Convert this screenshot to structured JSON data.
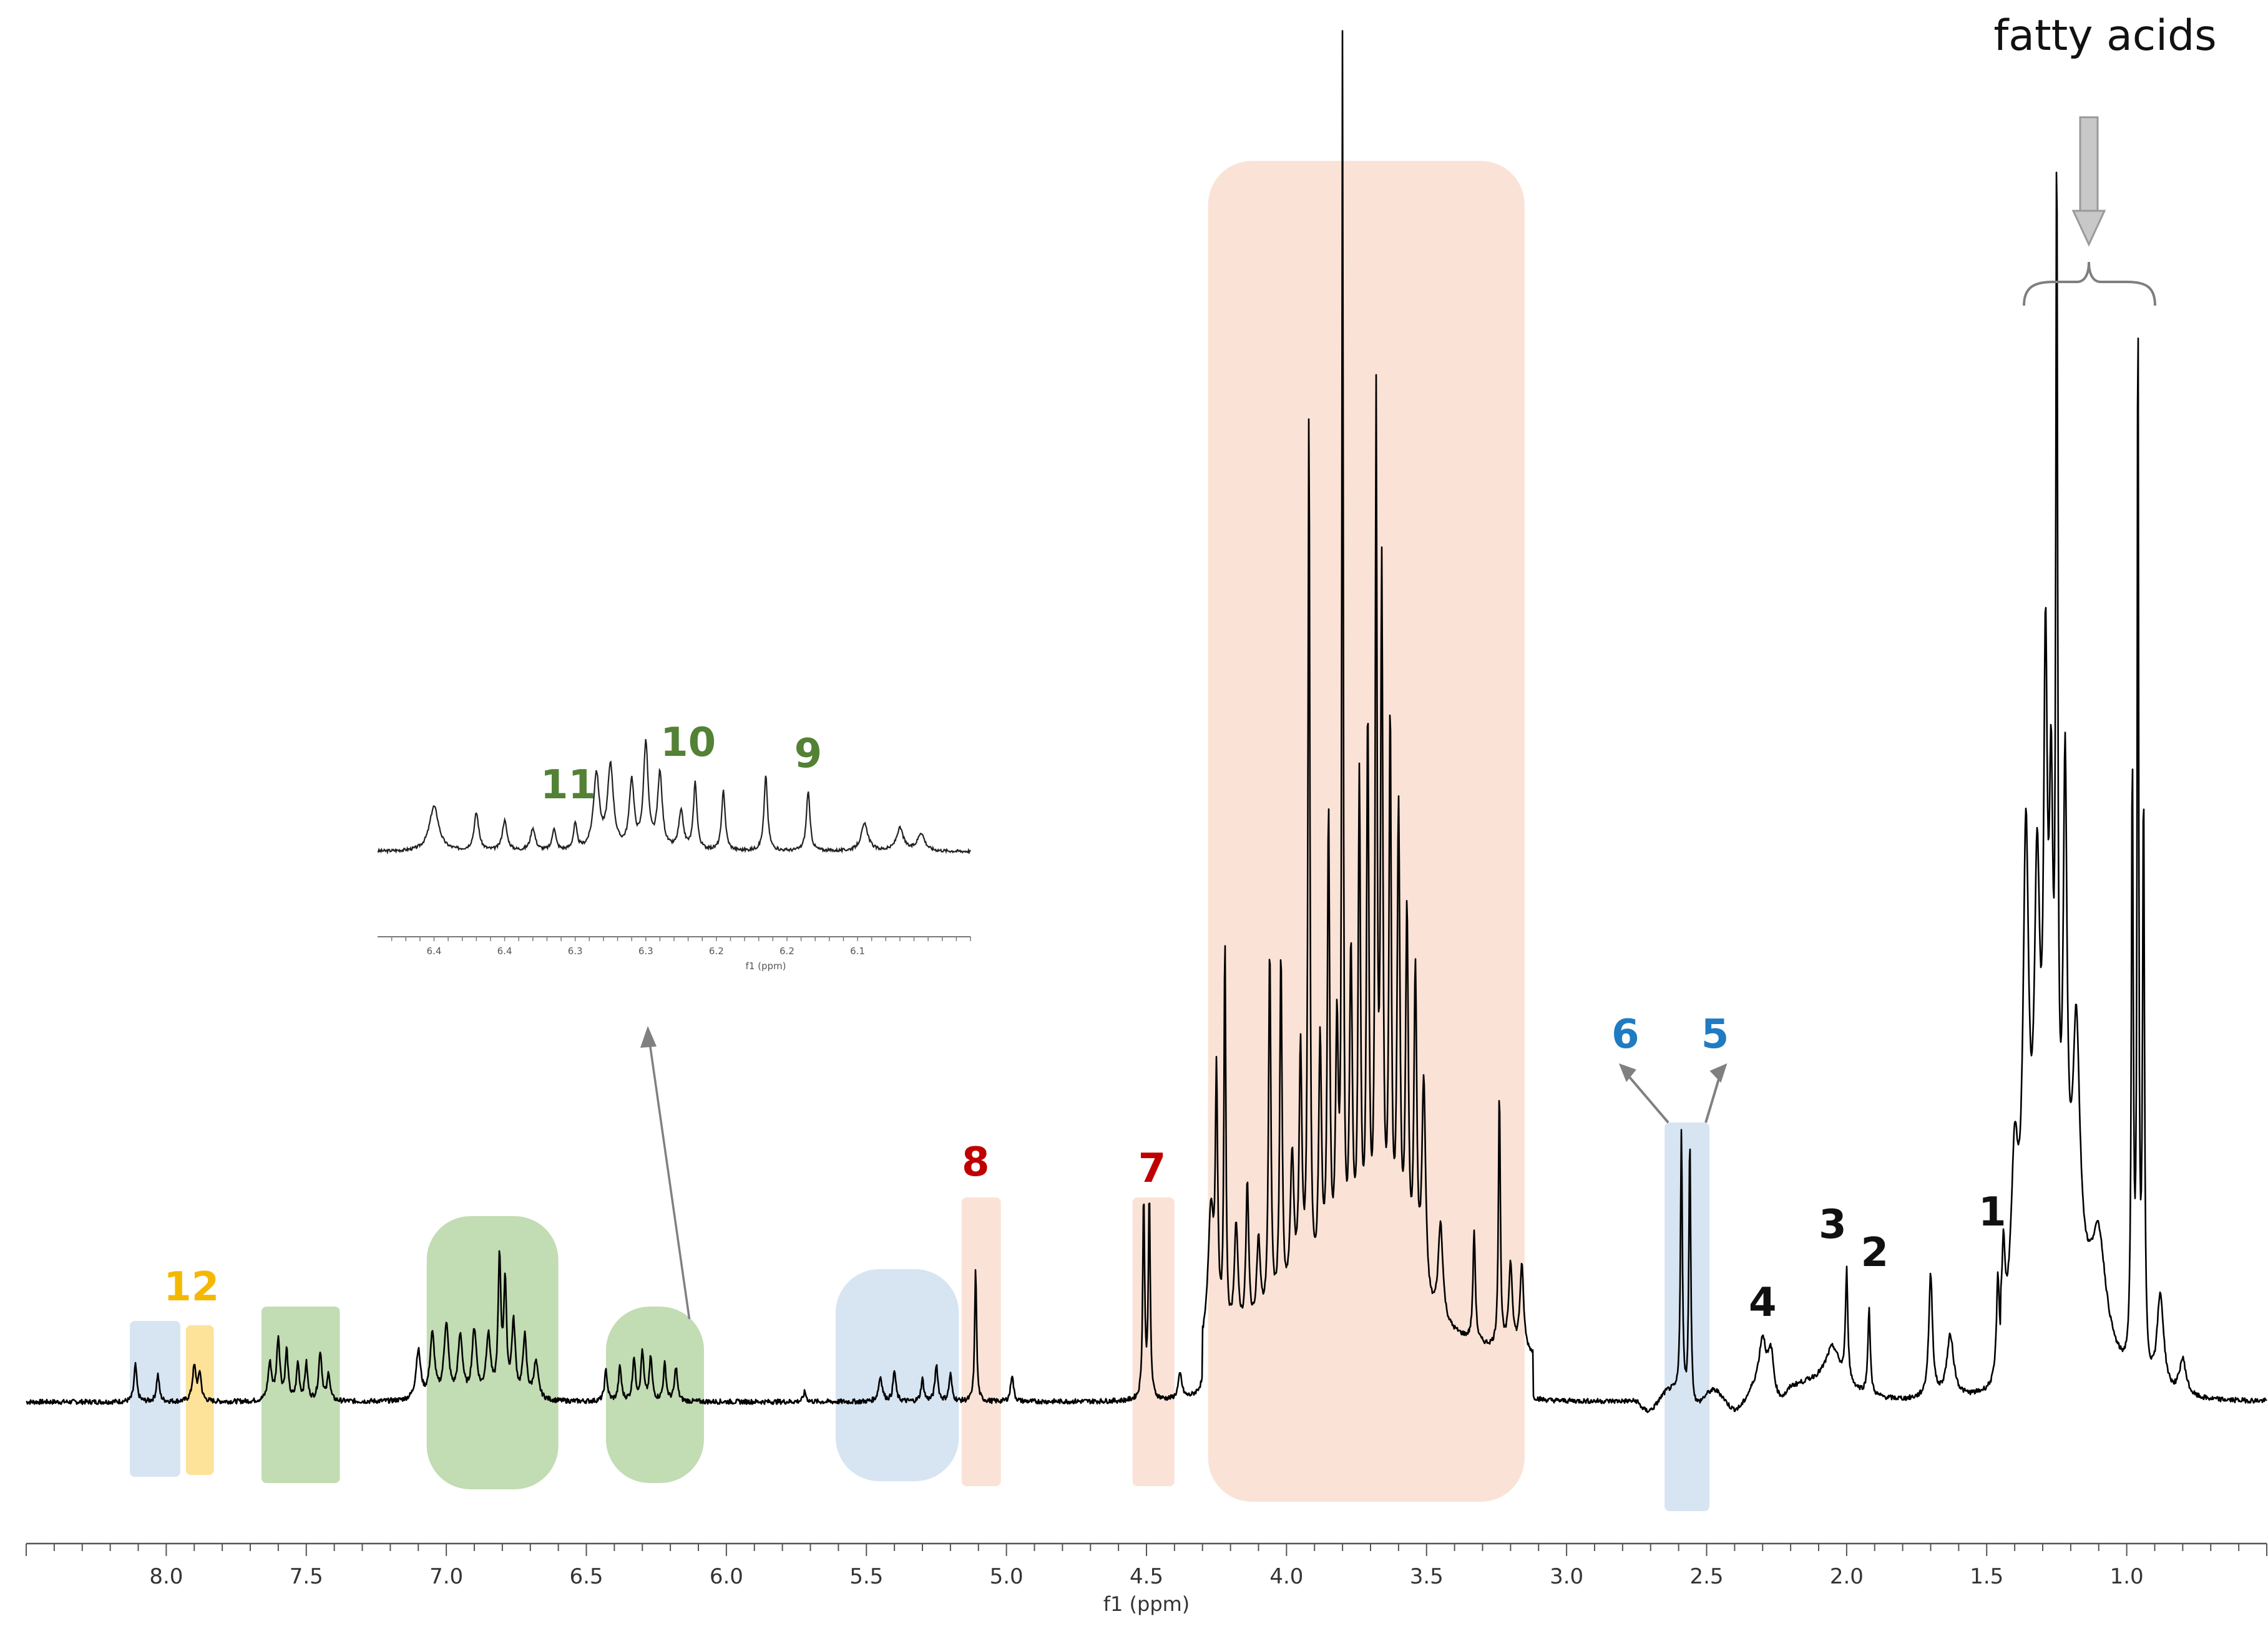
{
  "chart_data": {
    "type": "line",
    "title": "",
    "xlabel": "f1 (ppm)",
    "ylabel": "",
    "xlim": [
      8.5,
      0.5
    ],
    "x_reversed": true,
    "grid": false,
    "x_ticks": [
      8.0,
      7.5,
      7.0,
      6.5,
      6.0,
      5.5,
      5.0,
      4.5,
      4.0,
      3.5,
      3.0,
      2.5,
      2.0,
      1.5,
      1.0
    ],
    "x_tick_labels": [
      "8.0",
      "7.5",
      "7.0",
      "6.5",
      "6.0",
      "5.5",
      "5.0",
      "4.5",
      "4.0",
      "3.5",
      "3.0",
      "2.5",
      "2.0",
      "1.5",
      "1.0"
    ],
    "baseline": 0.0,
    "ylim": [
      0,
      1.0
    ],
    "peaks": [
      {
        "x": 8.11,
        "h": 0.03,
        "w": 0.006
      },
      {
        "x": 8.03,
        "h": 0.022,
        "w": 0.006
      },
      {
        "x": 7.9,
        "h": 0.028,
        "w": 0.008
      },
      {
        "x": 7.88,
        "h": 0.022,
        "w": 0.006
      },
      {
        "x": 7.63,
        "h": 0.03,
        "w": 0.008
      },
      {
        "x": 7.6,
        "h": 0.05,
        "w": 0.007
      },
      {
        "x": 7.57,
        "h": 0.04,
        "w": 0.006
      },
      {
        "x": 7.53,
        "h": 0.03,
        "w": 0.006
      },
      {
        "x": 7.5,
        "h": 0.03,
        "w": 0.006
      },
      {
        "x": 7.45,
        "h": 0.04,
        "w": 0.007
      },
      {
        "x": 7.42,
        "h": 0.022,
        "w": 0.006
      },
      {
        "x": 7.1,
        "h": 0.04,
        "w": 0.01
      },
      {
        "x": 7.05,
        "h": 0.052,
        "w": 0.01
      },
      {
        "x": 7.0,
        "h": 0.06,
        "w": 0.01
      },
      {
        "x": 6.95,
        "h": 0.05,
        "w": 0.01
      },
      {
        "x": 6.9,
        "h": 0.055,
        "w": 0.01
      },
      {
        "x": 6.85,
        "h": 0.05,
        "w": 0.01
      },
      {
        "x": 6.81,
        "h": 0.11,
        "w": 0.006
      },
      {
        "x": 6.79,
        "h": 0.09,
        "w": 0.006
      },
      {
        "x": 6.76,
        "h": 0.06,
        "w": 0.008
      },
      {
        "x": 6.72,
        "h": 0.05,
        "w": 0.008
      },
      {
        "x": 6.68,
        "h": 0.03,
        "w": 0.01
      },
      {
        "x": 6.43,
        "h": 0.025,
        "w": 0.006
      },
      {
        "x": 6.38,
        "h": 0.028,
        "w": 0.006
      },
      {
        "x": 6.33,
        "h": 0.035,
        "w": 0.006
      },
      {
        "x": 6.3,
        "h": 0.04,
        "w": 0.006
      },
      {
        "x": 6.27,
        "h": 0.035,
        "w": 0.006
      },
      {
        "x": 6.22,
        "h": 0.03,
        "w": 0.006
      },
      {
        "x": 6.18,
        "h": 0.028,
        "w": 0.006
      },
      {
        "x": 5.72,
        "h": 0.008,
        "w": 0.006
      },
      {
        "x": 5.45,
        "h": 0.02,
        "w": 0.008
      },
      {
        "x": 5.4,
        "h": 0.025,
        "w": 0.006
      },
      {
        "x": 5.3,
        "h": 0.018,
        "w": 0.006
      },
      {
        "x": 5.25,
        "h": 0.03,
        "w": 0.006
      },
      {
        "x": 5.2,
        "h": 0.022,
        "w": 0.006
      },
      {
        "x": 5.11,
        "h": 0.11,
        "w": 0.004
      },
      {
        "x": 4.98,
        "h": 0.022,
        "w": 0.006
      },
      {
        "x": 4.51,
        "h": 0.165,
        "w": 0.004
      },
      {
        "x": 4.49,
        "h": 0.165,
        "w": 0.004
      },
      {
        "x": 4.38,
        "h": 0.02,
        "w": 0.008
      },
      {
        "x": 4.27,
        "h": 0.11,
        "w": 0.012
      },
      {
        "x": 4.25,
        "h": 0.2,
        "w": 0.005
      },
      {
        "x": 4.22,
        "h": 0.32,
        "w": 0.004
      },
      {
        "x": 4.18,
        "h": 0.09,
        "w": 0.008
      },
      {
        "x": 4.14,
        "h": 0.12,
        "w": 0.006
      },
      {
        "x": 4.1,
        "h": 0.07,
        "w": 0.008
      },
      {
        "x": 4.06,
        "h": 0.3,
        "w": 0.005
      },
      {
        "x": 4.02,
        "h": 0.29,
        "w": 0.005
      },
      {
        "x": 3.98,
        "h": 0.12,
        "w": 0.008
      },
      {
        "x": 3.95,
        "h": 0.2,
        "w": 0.006
      },
      {
        "x": 3.92,
        "h": 0.72,
        "w": 0.004
      },
      {
        "x": 3.88,
        "h": 0.2,
        "w": 0.006
      },
      {
        "x": 3.85,
        "h": 0.38,
        "w": 0.005
      },
      {
        "x": 3.82,
        "h": 0.2,
        "w": 0.006
      },
      {
        "x": 3.8,
        "h": 1.0,
        "w": 0.003
      },
      {
        "x": 3.77,
        "h": 0.26,
        "w": 0.006
      },
      {
        "x": 3.74,
        "h": 0.4,
        "w": 0.005
      },
      {
        "x": 3.71,
        "h": 0.45,
        "w": 0.005
      },
      {
        "x": 3.68,
        "h": 0.69,
        "w": 0.004
      },
      {
        "x": 3.66,
        "h": 0.56,
        "w": 0.005
      },
      {
        "x": 3.63,
        "h": 0.45,
        "w": 0.005
      },
      {
        "x": 3.6,
        "h": 0.38,
        "w": 0.006
      },
      {
        "x": 3.57,
        "h": 0.3,
        "w": 0.006
      },
      {
        "x": 3.54,
        "h": 0.26,
        "w": 0.006
      },
      {
        "x": 3.51,
        "h": 0.18,
        "w": 0.008
      },
      {
        "x": 3.45,
        "h": 0.08,
        "w": 0.01
      },
      {
        "x": 3.33,
        "h": 0.09,
        "w": 0.005
      },
      {
        "x": 3.24,
        "h": 0.21,
        "w": 0.004
      },
      {
        "x": 3.2,
        "h": 0.07,
        "w": 0.008
      },
      {
        "x": 3.16,
        "h": 0.07,
        "w": 0.008
      },
      {
        "x": 2.59,
        "h": 0.22,
        "w": 0.004
      },
      {
        "x": 2.56,
        "h": 0.22,
        "w": 0.004
      },
      {
        "x": 2.3,
        "h": 0.04,
        "w": 0.015
      },
      {
        "x": 2.27,
        "h": 0.035,
        "w": 0.012
      },
      {
        "x": 2.05,
        "h": 0.03,
        "w": 0.03
      },
      {
        "x": 2.0,
        "h": 0.09,
        "w": 0.005
      },
      {
        "x": 1.92,
        "h": 0.07,
        "w": 0.005
      },
      {
        "x": 1.7,
        "h": 0.1,
        "w": 0.008
      },
      {
        "x": 1.63,
        "h": 0.05,
        "w": 0.015
      },
      {
        "x": 1.46,
        "h": 0.08,
        "w": 0.006
      },
      {
        "x": 1.44,
        "h": 0.07,
        "w": 0.006
      },
      {
        "x": 1.4,
        "h": 0.13,
        "w": 0.015
      },
      {
        "x": 1.36,
        "h": 0.36,
        "w": 0.012
      },
      {
        "x": 1.32,
        "h": 0.3,
        "w": 0.012
      },
      {
        "x": 1.29,
        "h": 0.44,
        "w": 0.008
      },
      {
        "x": 1.27,
        "h": 0.32,
        "w": 0.008
      },
      {
        "x": 1.25,
        "h": 0.83,
        "w": 0.004
      },
      {
        "x": 1.22,
        "h": 0.38,
        "w": 0.008
      },
      {
        "x": 1.18,
        "h": 0.2,
        "w": 0.015
      },
      {
        "x": 1.1,
        "h": 0.08,
        "w": 0.03
      },
      {
        "x": 0.98,
        "h": 0.49,
        "w": 0.004
      },
      {
        "x": 0.96,
        "h": 0.89,
        "w": 0.003
      },
      {
        "x": 0.94,
        "h": 0.47,
        "w": 0.004
      },
      {
        "x": 0.88,
        "h": 0.08,
        "w": 0.015
      },
      {
        "x": 0.8,
        "h": 0.03,
        "w": 0.015
      }
    ],
    "regions": [
      {
        "from": 8.13,
        "to": 7.95,
        "color": "#d7e4f2"
      },
      {
        "from": 7.93,
        "to": 7.83,
        "color": "#fde29a"
      },
      {
        "from": 7.66,
        "to": 7.38,
        "color": "#c2dcb3"
      },
      {
        "from": 7.07,
        "to": 6.6,
        "color": "#c2dcb3"
      },
      {
        "from": 6.43,
        "to": 6.08,
        "color": "#c2dcb3"
      },
      {
        "from": 5.61,
        "to": 5.17,
        "color": "#d7e4f2"
      },
      {
        "from": 5.16,
        "to": 5.02,
        "color": "#fae3d6"
      },
      {
        "from": 4.55,
        "to": 4.4,
        "color": "#fae3d6"
      },
      {
        "from": 4.28,
        "to": 3.15,
        "color": "#fae3d6"
      },
      {
        "from": 2.65,
        "to": 2.49,
        "color": "#d7e4f2"
      }
    ],
    "annotations": [
      {
        "text": "1",
        "x": 1.48,
        "color": "#111111"
      },
      {
        "text": "2",
        "x": 1.9,
        "color": "#111111"
      },
      {
        "text": "3",
        "x": 2.05,
        "color": "#111111"
      },
      {
        "text": "4",
        "x": 2.3,
        "color": "#111111"
      },
      {
        "text": "5",
        "x": 2.47,
        "color": "#1f7bc2"
      },
      {
        "text": "6",
        "x": 2.79,
        "color": "#1f7bc2"
      },
      {
        "text": "7",
        "x": 4.48,
        "color": "#c00000"
      },
      {
        "text": "8",
        "x": 5.11,
        "color": "#c00000"
      },
      {
        "text": "12",
        "x": 7.91,
        "color": "#f5b800"
      }
    ],
    "fatty_acids_label": "fatty acids",
    "inset": {
      "xlabel": "f1 (ppm)",
      "xlim": [
        6.47,
        6.05
      ],
      "tick_labels": [
        "6.4",
        "6.4",
        "6.3",
        "6.3",
        "6.2",
        "6.2",
        "6.1"
      ],
      "tick_positions": [
        6.43,
        6.38,
        6.33,
        6.28,
        6.23,
        6.18,
        6.13
      ],
      "peaks": [
        {
          "x": 6.43,
          "h": 0.3,
          "w": 0.004
        },
        {
          "x": 6.4,
          "h": 0.25,
          "w": 0.002
        },
        {
          "x": 6.38,
          "h": 0.2,
          "w": 0.002
        },
        {
          "x": 6.36,
          "h": 0.15,
          "w": 0.002
        },
        {
          "x": 6.345,
          "h": 0.15,
          "w": 0.0015
        },
        {
          "x": 6.33,
          "h": 0.17,
          "w": 0.0015
        },
        {
          "x": 6.315,
          "h": 0.5,
          "w": 0.0025
        },
        {
          "x": 6.305,
          "h": 0.55,
          "w": 0.0025
        },
        {
          "x": 6.29,
          "h": 0.45,
          "w": 0.002
        },
        {
          "x": 6.28,
          "h": 0.7,
          "w": 0.002
        },
        {
          "x": 6.27,
          "h": 0.5,
          "w": 0.002
        },
        {
          "x": 6.255,
          "h": 0.25,
          "w": 0.002
        },
        {
          "x": 6.245,
          "h": 0.45,
          "w": 0.0015
        },
        {
          "x": 6.225,
          "h": 0.4,
          "w": 0.0015
        },
        {
          "x": 6.195,
          "h": 0.5,
          "w": 0.0015
        },
        {
          "x": 6.165,
          "h": 0.4,
          "w": 0.0015
        },
        {
          "x": 6.125,
          "h": 0.18,
          "w": 0.003
        },
        {
          "x": 6.1,
          "h": 0.15,
          "w": 0.003
        },
        {
          "x": 6.085,
          "h": 0.12,
          "w": 0.003
        }
      ],
      "annotations": [
        {
          "text": "11",
          "x": 6.335,
          "color": "#538135"
        },
        {
          "text": "10",
          "x": 6.25,
          "color": "#538135"
        },
        {
          "text": "9",
          "x": 6.165,
          "color": "#538135"
        }
      ]
    }
  }
}
